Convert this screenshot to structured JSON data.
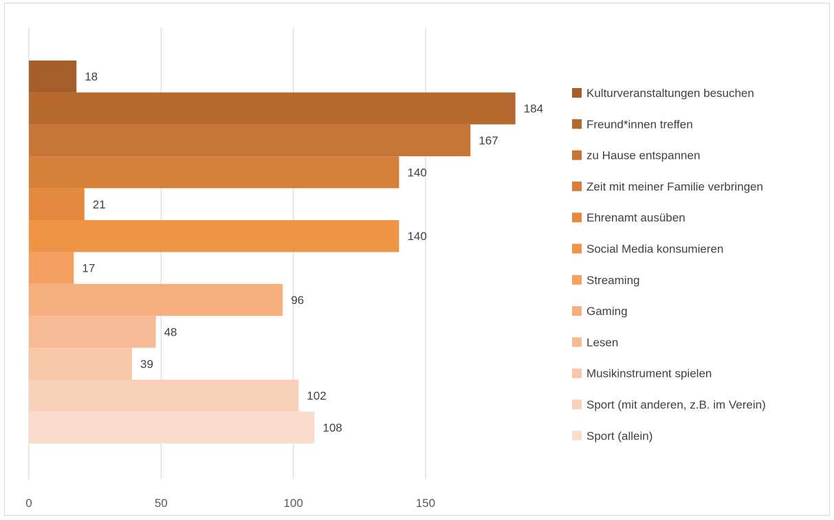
{
  "chart_data": {
    "type": "bar",
    "orientation": "horizontal",
    "title": "",
    "xlabel": "",
    "ylabel": "",
    "xlim": [
      0,
      200
    ],
    "x_ticks": [
      0,
      50,
      100,
      150
    ],
    "grid": "vertical",
    "legend_position": "right",
    "series": [
      {
        "name": "Kulturveranstaltungen besuchen",
        "value": 18,
        "color": "#A55D2A"
      },
      {
        "name": "Freund*innen treffen",
        "value": 184,
        "color": "#B5692F"
      },
      {
        "name": "zu Hause entspannen",
        "value": 167,
        "color": "#C57535"
      },
      {
        "name": "Zeit mit meiner Familie verbringen",
        "value": 140,
        "color": "#D4803A"
      },
      {
        "name": "Ehrenamt ausüben",
        "value": 21,
        "color": "#E38A3F"
      },
      {
        "name": "Social Media konsumieren",
        "value": 140,
        "color": "#EE9446"
      },
      {
        "name": "Streaming",
        "value": 17,
        "color": "#F3A061"
      },
      {
        "name": "Gaming",
        "value": 96,
        "color": "#F5AE7D"
      },
      {
        "name": "Lesen",
        "value": 48,
        "color": "#F6BB95"
      },
      {
        "name": "Musikinstrument spielen",
        "value": 39,
        "color": "#F8C7AA"
      },
      {
        "name": "Sport (mit anderen, z.B. im Verein)",
        "value": 102,
        "color": "#F9D0BA"
      },
      {
        "name": "Sport (allein)",
        "value": 108,
        "color": "#FADCCD"
      }
    ]
  }
}
